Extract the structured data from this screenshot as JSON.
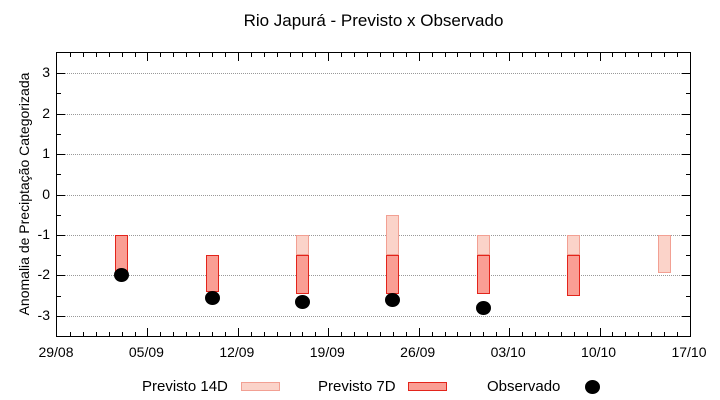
{
  "chart_data": {
    "type": "candlestick",
    "title": "Rio Japurá - Previsto x Observado",
    "ylabel": "Anomalia de Preciptação Categorizada",
    "ylim": [
      -3.5,
      3.5
    ],
    "yticks": [
      3,
      2,
      1,
      0,
      -1,
      -2,
      -3
    ],
    "grid": "horizontal-dotted",
    "legend_position": "bottom-outside",
    "x_axis": {
      "tick_labels": [
        "29/08",
        "05/09",
        "12/09",
        "19/09",
        "26/09",
        "03/10",
        "10/10",
        "17/10"
      ],
      "days_total": 49,
      "major_tick_days": 7,
      "minor_tick_days": 1
    },
    "series": [
      {
        "name": "Previsto 14D",
        "fill": "#fbd3c9",
        "border": "#f2a093",
        "bars": [
          {
            "date": "17/09",
            "day": 19,
            "from": -1.0,
            "to": -1.5
          },
          {
            "date": "24/09",
            "day": 26,
            "from": -0.5,
            "to": -1.5
          },
          {
            "date": "01/10",
            "day": 33,
            "from": -1.0,
            "to": -1.5
          },
          {
            "date": "08/10",
            "day": 40,
            "from": -1.0,
            "to": -1.5
          },
          {
            "date": "15/10",
            "day": 47,
            "from": -1.0,
            "to": -1.95
          }
        ]
      },
      {
        "name": "Previsto 7D",
        "fill": "#fa9e94",
        "border": "#e3241b",
        "bars": [
          {
            "date": "03/09",
            "day": 5,
            "from": -1.0,
            "to": -2.0
          },
          {
            "date": "10/09",
            "day": 12,
            "from": -1.5,
            "to": -2.4
          },
          {
            "date": "17/09",
            "day": 19,
            "from": -1.5,
            "to": -2.45
          },
          {
            "date": "24/09",
            "day": 26,
            "from": -1.5,
            "to": -2.45
          },
          {
            "date": "01/10",
            "day": 33,
            "from": -1.5,
            "to": -2.45
          },
          {
            "date": "08/10",
            "day": 40,
            "from": -1.5,
            "to": -2.5
          }
        ]
      },
      {
        "name": "Observado",
        "color": "#000000",
        "points": [
          {
            "date": "03/09",
            "day": 5,
            "value": -2.0
          },
          {
            "date": "10/09",
            "day": 12,
            "value": -2.55
          },
          {
            "date": "17/09",
            "day": 19,
            "value": -2.65
          },
          {
            "date": "24/09",
            "day": 26,
            "value": -2.6
          },
          {
            "date": "01/10",
            "day": 33,
            "value": -2.8
          }
        ]
      }
    ],
    "legend": [
      {
        "label": "Previsto 14D"
      },
      {
        "label": "Previsto 7D"
      },
      {
        "label": "Observado"
      }
    ]
  }
}
